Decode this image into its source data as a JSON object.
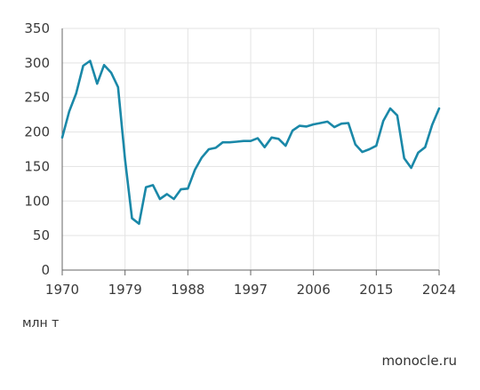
{
  "chart_data": {
    "type": "line",
    "title": "",
    "xlabel": "",
    "ylabel": "",
    "unit_label": "млн т",
    "source": "monocle.ru",
    "xlim": [
      1970,
      2024
    ],
    "ylim": [
      0,
      350
    ],
    "x_ticks": [
      1970,
      1979,
      1988,
      1997,
      2006,
      2015,
      2024
    ],
    "y_ticks": [
      0,
      50,
      100,
      150,
      200,
      250,
      300,
      350
    ],
    "grid": true,
    "colors": {
      "line": "#1a88a8",
      "grid": "#e3e3e3",
      "axis": "#666666"
    },
    "series": [
      {
        "x": [
          1970,
          1971,
          1972,
          1973,
          1974,
          1975,
          1976,
          1977,
          1978,
          1979,
          1980,
          1981,
          1982,
          1983,
          1984,
          1985,
          1986,
          1987,
          1988,
          1989,
          1990,
          1991,
          1992,
          1993,
          1994,
          1995,
          1996,
          1997,
          1998,
          1999,
          2000,
          2001,
          2002,
          2003,
          2004,
          2005,
          2006,
          2007,
          2008,
          2009,
          2010,
          2011,
          2012,
          2013,
          2014,
          2015,
          2016,
          2017,
          2018,
          2019,
          2020,
          2021,
          2022,
          2023,
          2024
        ],
        "y": [
          192,
          230,
          256,
          296,
          303,
          270,
          297,
          286,
          265,
          160,
          75,
          67,
          120,
          123,
          103,
          110,
          103,
          117,
          118,
          145,
          163,
          175,
          177,
          185,
          185,
          186,
          187,
          187,
          191,
          178,
          192,
          190,
          180,
          202,
          209,
          208,
          211,
          213,
          215,
          207,
          212,
          213,
          182,
          171,
          175,
          180,
          216,
          234,
          224,
          162,
          148,
          170,
          178,
          210,
          234
        ]
      }
    ]
  }
}
